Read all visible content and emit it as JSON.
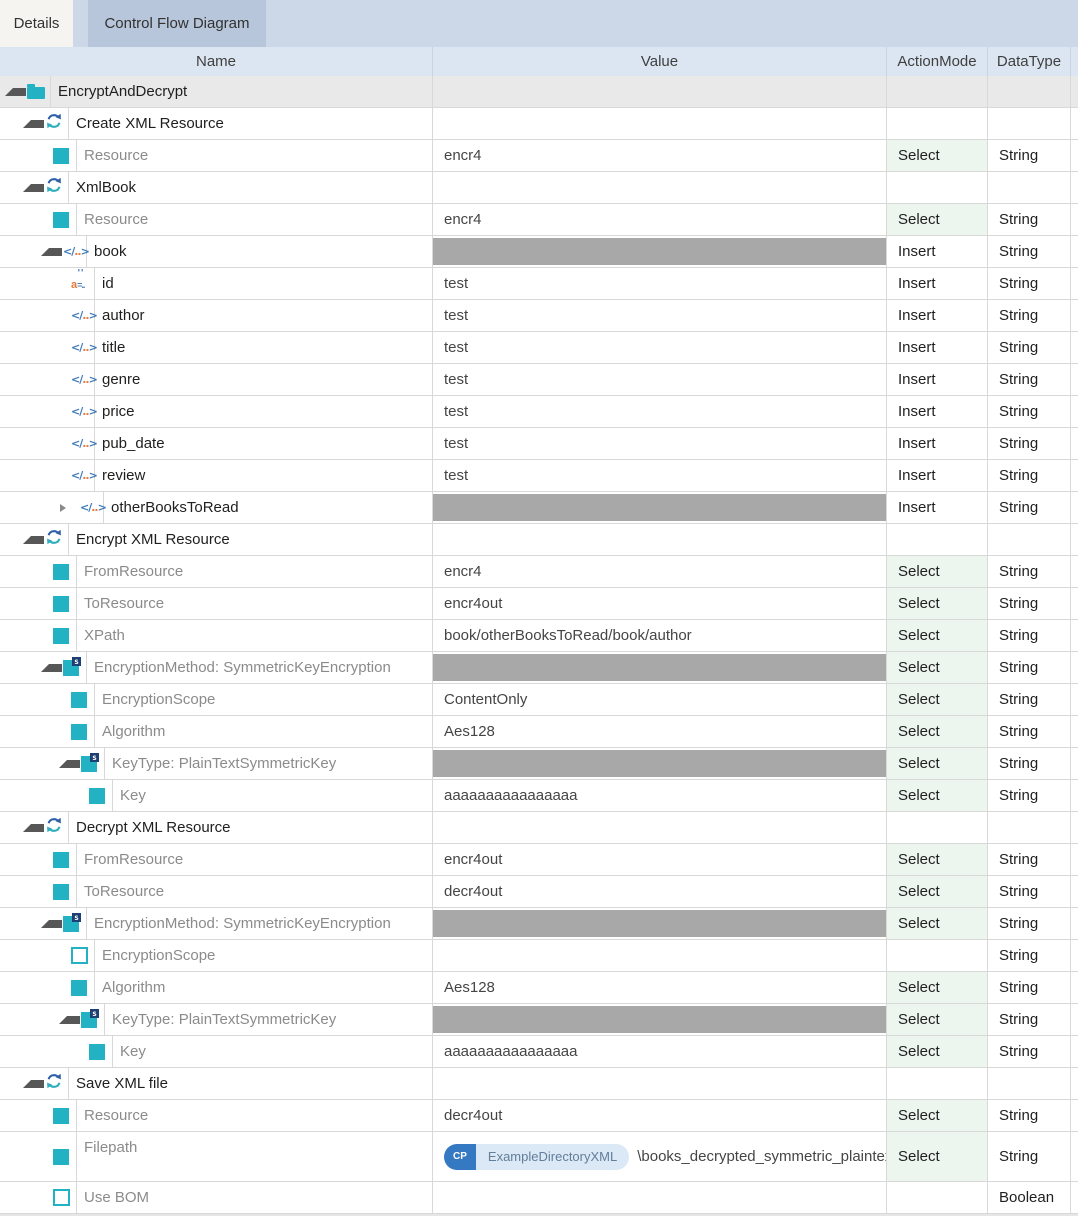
{
  "tabs": [
    {
      "label": "Details",
      "active": true
    },
    {
      "label": "Control Flow Diagram",
      "active": false
    }
  ],
  "columns": [
    "Name",
    "Value",
    "ActionMode",
    "DataType"
  ],
  "icons": {
    "element_glyph_open": "</",
    "element_glyph_dots": "..",
    "element_glyph_close": ">",
    "attr_glyph_a": "a",
    "attr_glyph_eq": "=..",
    "attr_glyph_quotes": "''",
    "struct_glyph": "s"
  },
  "colors": {
    "teal": "#23b2c3",
    "border": "#d8d8d8",
    "header_bg": "#dce6f2",
    "shade_row": "#e9e9e9",
    "gray_fill": "#a8a8a8",
    "select_bg": "#edf6ee",
    "param_text": "#8b8b8b",
    "dark_text": "#1f1f1f",
    "tab_strip": "#ccd8e7",
    "tab_active": "#f6f4f1",
    "tab_inactive": "#b7c6da",
    "element_blue": "#3a79b8",
    "element_orange": "#e8793a",
    "badge_blue": "#3579c2",
    "badge_light": "#dbe8f6",
    "path_color": "#5d2150"
  },
  "rows": [
    {
      "name": "EncryptAndDecrypt",
      "level": 0,
      "icon": "folder",
      "expander": "open",
      "value": "",
      "action": "",
      "datatype": "",
      "text": "dark",
      "shade": true
    },
    {
      "name": "Create XML Resource",
      "level": 1,
      "icon": "refresh",
      "expander": "open",
      "value": "",
      "action": "",
      "datatype": "",
      "text": "dark"
    },
    {
      "name": "Resource",
      "level": 2,
      "icon": "param",
      "expander": "none",
      "value": "encr4",
      "action": "Select",
      "datatype": "String",
      "text": "gray"
    },
    {
      "name": "XmlBook",
      "level": 1,
      "icon": "refresh",
      "expander": "open",
      "value": "",
      "action": "",
      "datatype": "",
      "text": "dark"
    },
    {
      "name": "Resource",
      "level": 2,
      "icon": "param",
      "expander": "none",
      "value": "encr4",
      "action": "Select",
      "datatype": "String",
      "text": "gray"
    },
    {
      "name": "book",
      "level": 2,
      "icon": "element",
      "expander": "open",
      "value": "",
      "gray": true,
      "action": "Insert",
      "datatype": "String",
      "text": "dark"
    },
    {
      "name": "id",
      "level": 3,
      "icon": "attr",
      "expander": "none",
      "value": "test",
      "action": "Insert",
      "datatype": "String",
      "text": "dark"
    },
    {
      "name": "author",
      "level": 3,
      "icon": "element",
      "expander": "none",
      "value": "test",
      "action": "Insert",
      "datatype": "String",
      "text": "dark"
    },
    {
      "name": "title",
      "level": 3,
      "icon": "element",
      "expander": "none",
      "value": "test",
      "action": "Insert",
      "datatype": "String",
      "text": "dark"
    },
    {
      "name": "genre",
      "level": 3,
      "icon": "element",
      "expander": "none",
      "value": "test",
      "action": "Insert",
      "datatype": "String",
      "text": "dark"
    },
    {
      "name": "price",
      "level": 3,
      "icon": "element",
      "expander": "none",
      "value": "test",
      "action": "Insert",
      "datatype": "String",
      "text": "dark"
    },
    {
      "name": "pub_date",
      "level": 3,
      "icon": "element",
      "expander": "none",
      "value": "test",
      "action": "Insert",
      "datatype": "String",
      "text": "dark"
    },
    {
      "name": "review",
      "level": 3,
      "icon": "element",
      "expander": "none",
      "value": "test",
      "action": "Insert",
      "datatype": "String",
      "text": "dark"
    },
    {
      "name": "otherBooksToRead",
      "level": 3,
      "icon": "element",
      "expander": "closed",
      "value": "",
      "gray": true,
      "action": "Insert",
      "datatype": "String",
      "text": "dark"
    },
    {
      "name": "Encrypt XML Resource",
      "level": 1,
      "icon": "refresh",
      "expander": "open",
      "value": "",
      "action": "",
      "datatype": "",
      "text": "dark"
    },
    {
      "name": "FromResource",
      "level": 2,
      "icon": "param",
      "expander": "none",
      "value": "encr4",
      "action": "Select",
      "datatype": "String",
      "text": "gray"
    },
    {
      "name": "ToResource",
      "level": 2,
      "icon": "param",
      "expander": "none",
      "value": "encr4out",
      "action": "Select",
      "datatype": "String",
      "text": "gray"
    },
    {
      "name": "XPath",
      "level": 2,
      "icon": "param",
      "expander": "none",
      "value": "book/otherBooksToRead/book/author",
      "action": "Select",
      "datatype": "String",
      "text": "gray"
    },
    {
      "name": "EncryptionMethod: SymmetricKeyEncryption",
      "level": 2,
      "icon": "struct",
      "expander": "open",
      "value": "",
      "gray": true,
      "action": "Select",
      "datatype": "String",
      "text": "gray"
    },
    {
      "name": "EncryptionScope",
      "level": 3,
      "icon": "param",
      "expander": "none",
      "value": "ContentOnly",
      "action": "Select",
      "datatype": "String",
      "text": "gray"
    },
    {
      "name": "Algorithm",
      "level": 3,
      "icon": "param",
      "expander": "none",
      "value": "Aes128",
      "action": "Select",
      "datatype": "String",
      "text": "gray"
    },
    {
      "name": "KeyType: PlainTextSymmetricKey",
      "level": 3,
      "icon": "struct",
      "expander": "open",
      "value": "",
      "gray": true,
      "action": "Select",
      "datatype": "String",
      "text": "gray"
    },
    {
      "name": "Key",
      "level": 4,
      "icon": "param",
      "expander": "none",
      "value": "aaaaaaaaaaaaaaaa",
      "action": "Select",
      "datatype": "String",
      "text": "gray"
    },
    {
      "name": "Decrypt XML Resource",
      "level": 1,
      "icon": "refresh",
      "expander": "open",
      "value": "",
      "action": "",
      "datatype": "",
      "text": "dark"
    },
    {
      "name": "FromResource",
      "level": 2,
      "icon": "param",
      "expander": "none",
      "value": "encr4out",
      "action": "Select",
      "datatype": "String",
      "text": "gray"
    },
    {
      "name": "ToResource",
      "level": 2,
      "icon": "param",
      "expander": "none",
      "value": "decr4out",
      "action": "Select",
      "datatype": "String",
      "text": "gray"
    },
    {
      "name": "EncryptionMethod: SymmetricKeyEncryption",
      "level": 2,
      "icon": "struct",
      "expander": "open",
      "value": "",
      "gray": true,
      "action": "Select",
      "datatype": "String",
      "text": "gray"
    },
    {
      "name": "EncryptionScope",
      "level": 3,
      "icon": "checkbox",
      "expander": "none",
      "value": "",
      "action": "",
      "datatype": "String",
      "text": "gray"
    },
    {
      "name": "Algorithm",
      "level": 3,
      "icon": "param",
      "expander": "none",
      "value": "Aes128",
      "action": "Select",
      "datatype": "String",
      "text": "gray"
    },
    {
      "name": "KeyType: PlainTextSymmetricKey",
      "level": 3,
      "icon": "struct",
      "expander": "open",
      "value": "",
      "gray": true,
      "action": "Select",
      "datatype": "String",
      "text": "gray"
    },
    {
      "name": "Key",
      "level": 4,
      "icon": "param",
      "expander": "none",
      "value": "aaaaaaaaaaaaaaaa",
      "action": "Select",
      "datatype": "String",
      "text": "gray"
    },
    {
      "name": "Save XML file",
      "level": 1,
      "icon": "refresh",
      "expander": "open",
      "value": "",
      "action": "",
      "datatype": "",
      "text": "dark"
    },
    {
      "name": "Resource",
      "level": 2,
      "icon": "param",
      "expander": "none",
      "value": "decr4out",
      "action": "Select",
      "datatype": "String",
      "text": "gray"
    },
    {
      "name": "Filepath",
      "level": 2,
      "icon": "param",
      "expander": "none",
      "value": "",
      "badge": {
        "prefix": "CP",
        "container": "ExampleDirectoryXML",
        "path": "\\books_decrypted_symmetric_plaintext.xml"
      },
      "action": "Select",
      "datatype": "String",
      "text": "gray",
      "tall": true
    },
    {
      "name": "Use BOM",
      "level": 2,
      "icon": "checkbox",
      "expander": "none",
      "value": "",
      "action": "",
      "datatype": "Boolean",
      "text": "gray"
    }
  ]
}
